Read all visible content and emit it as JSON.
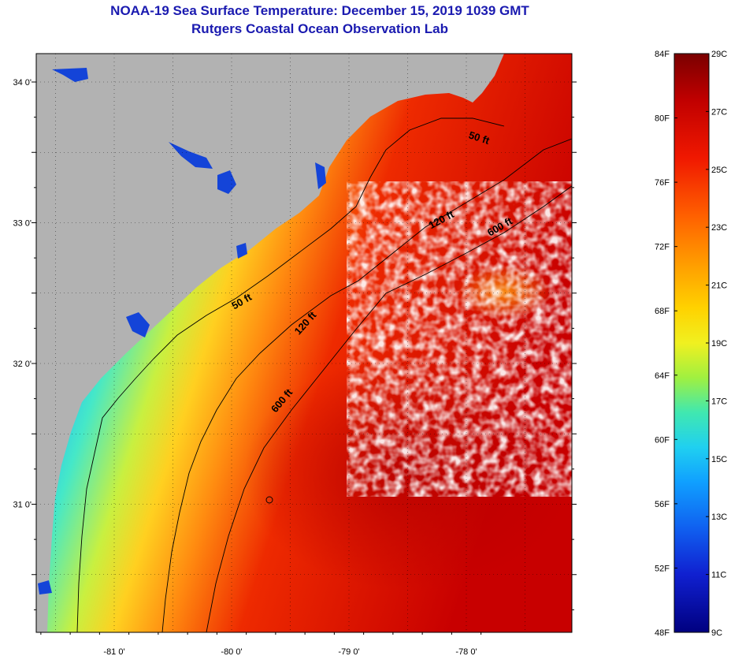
{
  "title_line1": "NOAA-19 Sea Surface Temperature:  December 15, 2019 1039 GMT",
  "title_line2": "Rutgers Coastal Ocean Observation Lab",
  "map": {
    "lon_labels": [
      {
        "value": -81,
        "text": "-81 0'"
      },
      {
        "value": -80,
        "text": "-80 0'"
      },
      {
        "value": -79,
        "text": "-79 0'"
      },
      {
        "value": -78,
        "text": "-78 0'"
      }
    ],
    "lat_labels": [
      {
        "value": 34,
        "text": "34 0'"
      },
      {
        "value": 33,
        "text": "33 0'"
      },
      {
        "value": 32,
        "text": "32 0'"
      },
      {
        "value": 31,
        "text": "31 0'"
      }
    ],
    "contour_labels": [
      {
        "text": "50 ft",
        "lon": -77.9,
        "lat": 33.58,
        "angle": 18
      },
      {
        "text": "120 ft",
        "lon": -78.2,
        "lat": 33.0,
        "angle": -28
      },
      {
        "text": "600 ft",
        "lon": -77.7,
        "lat": 32.95,
        "angle": -30
      },
      {
        "text": "50 ft",
        "lon": -79.9,
        "lat": 32.42,
        "angle": -30
      },
      {
        "text": "120 ft",
        "lon": -79.35,
        "lat": 32.27,
        "angle": -48
      },
      {
        "text": "600 ft",
        "lon": -79.55,
        "lat": 31.72,
        "angle": -50
      }
    ],
    "land_color": "#b2b2b2"
  },
  "colorbar": {
    "f_labels": [
      "84F",
      "80F",
      "76F",
      "72F",
      "68F",
      "64F",
      "60F",
      "56F",
      "52F",
      "48F"
    ],
    "c_labels": [
      "29C",
      "27C",
      "25C",
      "23C",
      "21C",
      "19C",
      "17C",
      "15C",
      "13C",
      "11C",
      "9C"
    ]
  }
}
